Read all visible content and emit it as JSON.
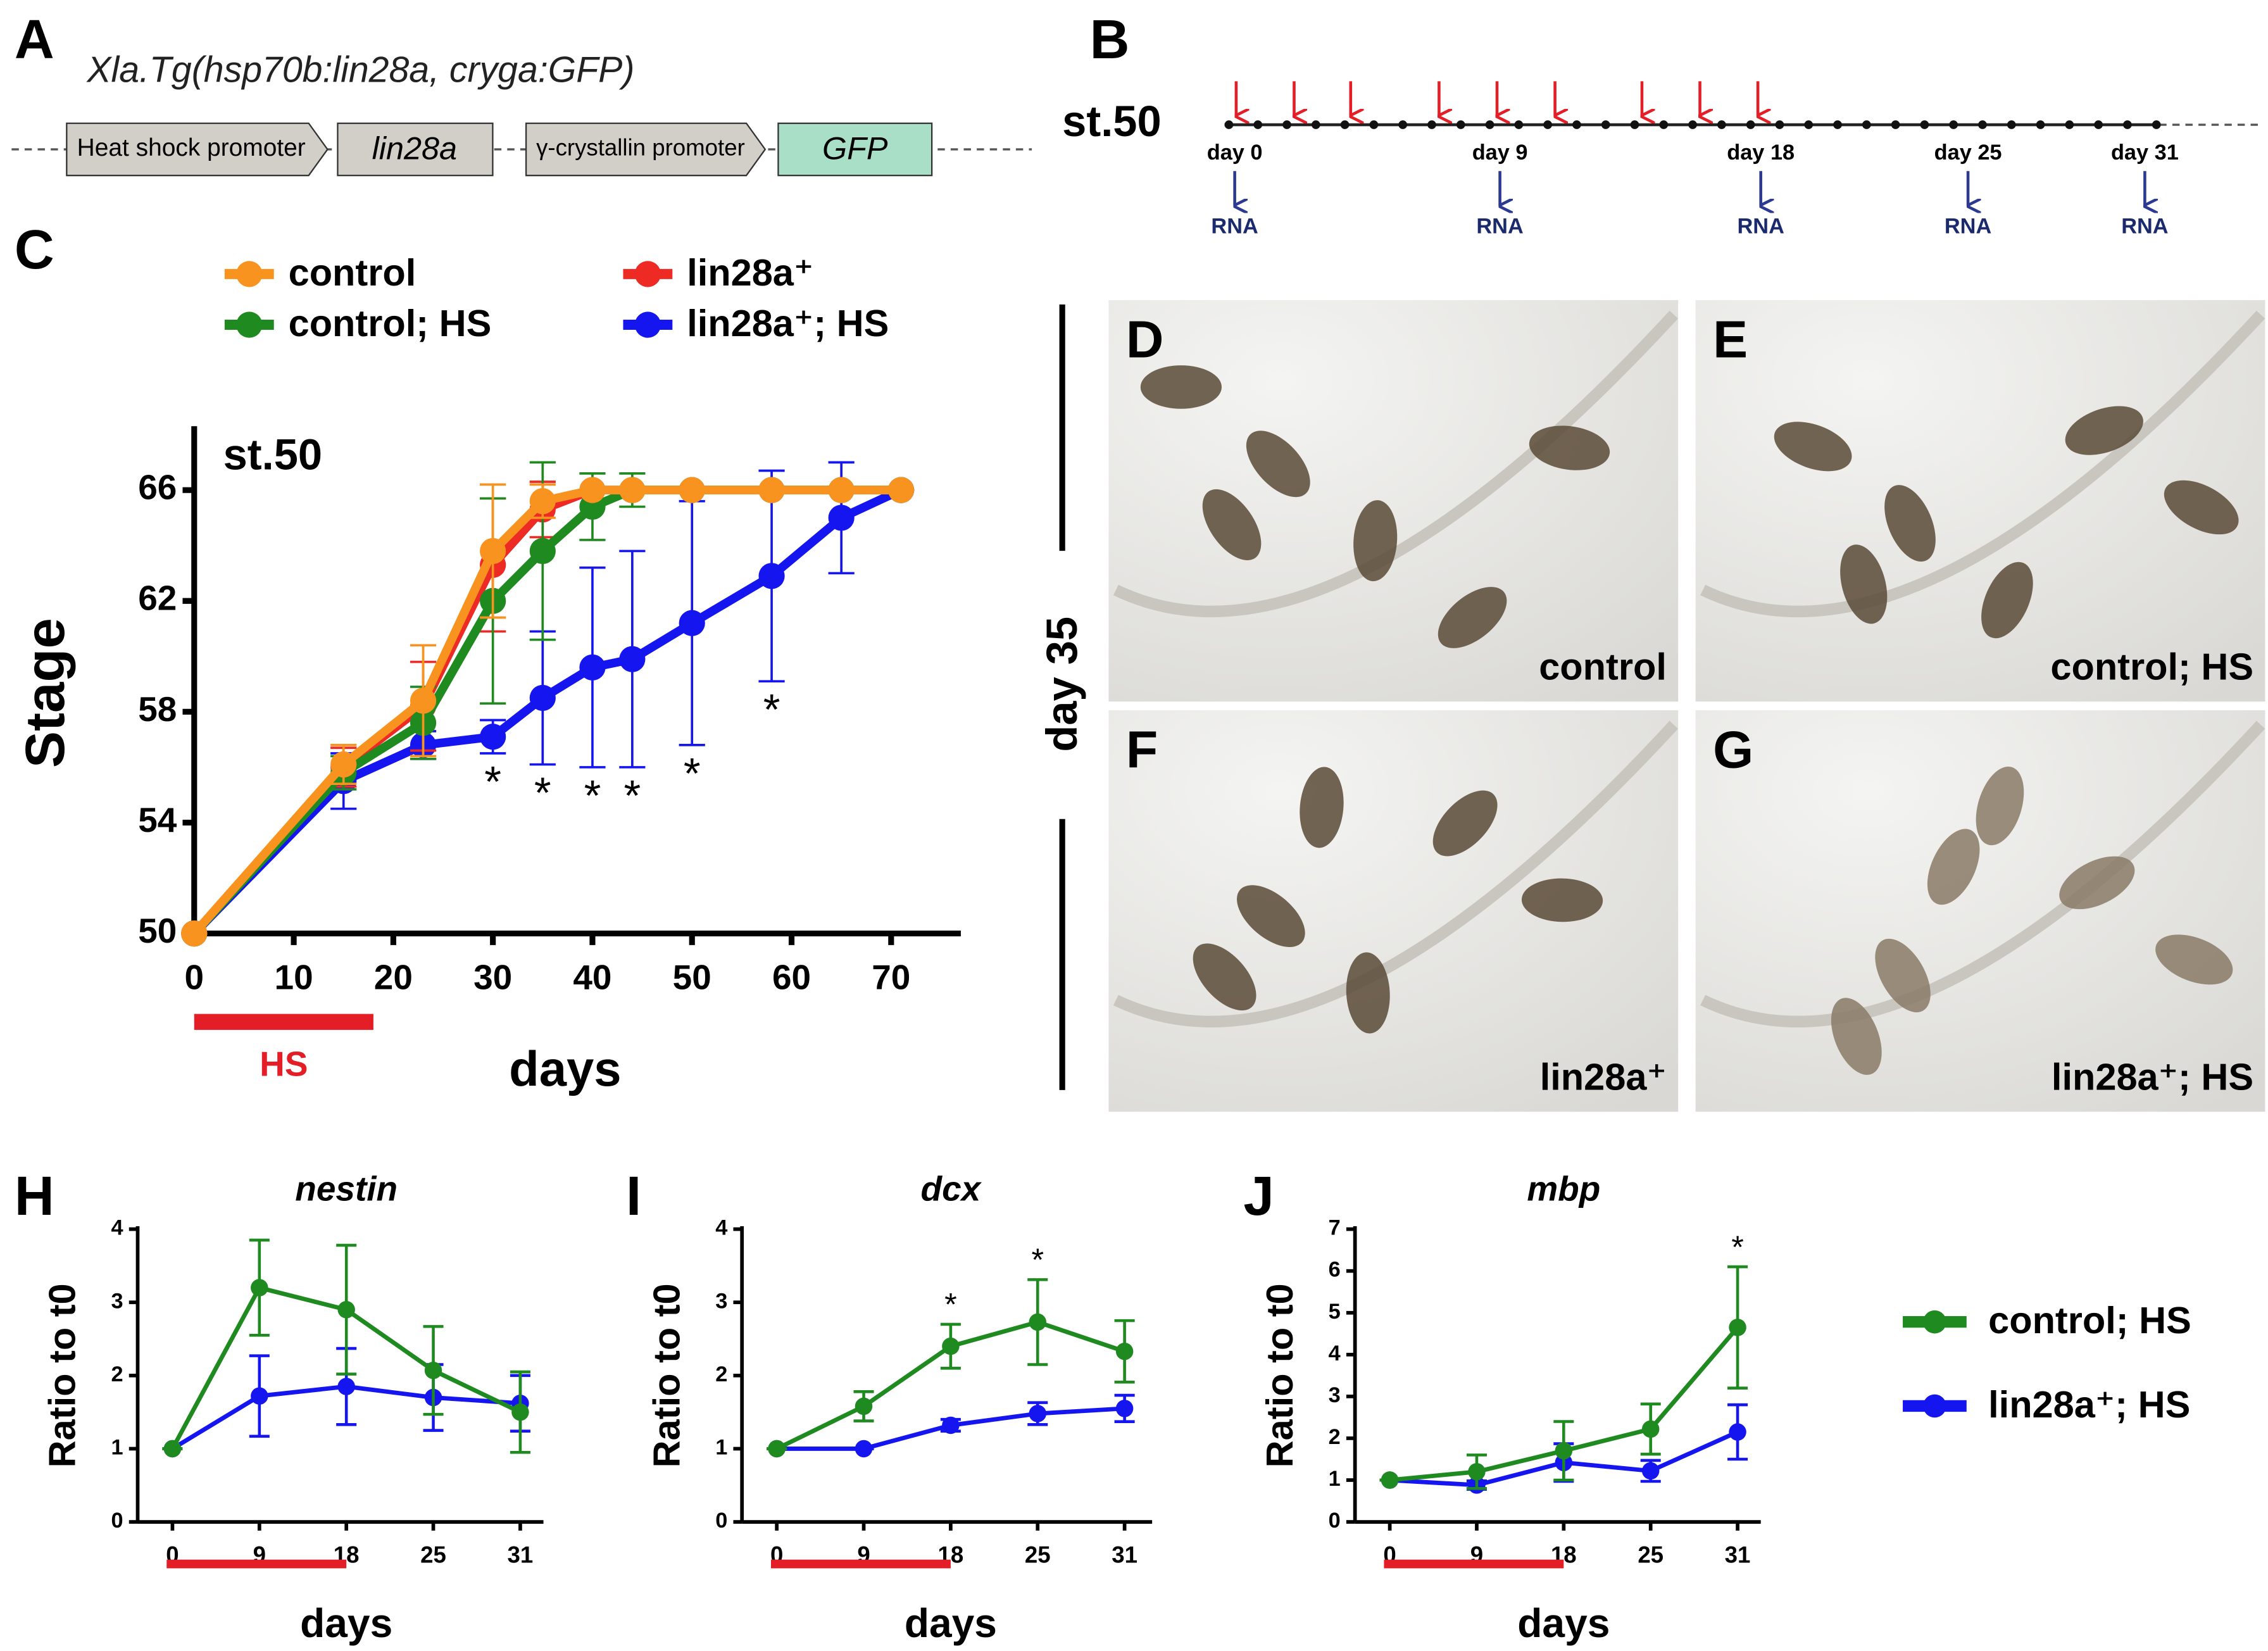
{
  "panel_a": {
    "letter": "A",
    "title": "Xla.Tg(hsp70b:lin28a, cryga:GFP)",
    "elements": [
      "Heat shock promoter",
      "lin28a",
      "γ-crystallin promoter",
      "GFP"
    ]
  },
  "panel_b": {
    "letter": "B",
    "stage": "st.50",
    "sampling": [
      {
        "day": "day 0",
        "label": "RNA"
      },
      {
        "day": "day 9",
        "label": "RNA"
      },
      {
        "day": "day 18",
        "label": "RNA"
      },
      {
        "day": "day 25",
        "label": "RNA"
      },
      {
        "day": "day 31",
        "label": "RNA"
      }
    ]
  },
  "photos": {
    "side_label": "day 35",
    "panels": [
      {
        "letter": "D",
        "label": "control"
      },
      {
        "letter": "E",
        "label": "control; HS"
      },
      {
        "letter": "F",
        "label": "lin28a⁺"
      },
      {
        "letter": "G",
        "label": "lin28a⁺; HS"
      }
    ]
  },
  "chart_data": [
    {
      "type": "line",
      "letter": "C",
      "title": "st.50",
      "x_label": "days",
      "y_label": "Stage",
      "x": [
        0,
        15,
        23,
        30,
        35,
        40,
        44,
        50,
        58,
        65,
        71
      ],
      "series": [
        {
          "name": "control",
          "color": "#f7931e",
          "values": [
            50,
            56.1,
            58.4,
            63.8,
            65.6,
            66,
            66,
            66,
            66,
            66,
            66
          ],
          "errors": [
            0,
            0.7,
            2,
            2.4,
            0.6,
            0,
            0,
            0,
            0,
            0,
            0
          ]
        },
        {
          "name": "control; HS",
          "color": "#1f8a1f",
          "values": [
            50,
            55.8,
            57.6,
            62,
            63.8,
            65.4,
            66,
            66,
            66,
            66,
            66
          ],
          "errors": [
            0,
            0.6,
            1.3,
            3.7,
            3.2,
            1.2,
            0.6,
            0,
            0,
            0,
            0
          ]
        },
        {
          "name": "lin28a⁺",
          "color": "#ee2a24",
          "values": [
            50,
            56,
            58.2,
            63.3,
            65.3,
            66,
            66,
            66,
            66,
            66,
            66
          ],
          "errors": [
            0,
            0.7,
            1.6,
            2.4,
            1,
            0,
            0,
            0,
            0,
            0,
            0
          ]
        },
        {
          "name": "lin28a⁺; HS",
          "color": "#1515f0",
          "values": [
            50,
            55.5,
            56.8,
            57.1,
            58.5,
            59.6,
            59.9,
            61.2,
            62.9,
            65,
            66
          ],
          "errors": [
            0,
            1,
            0.5,
            0.6,
            2.4,
            3.6,
            3.9,
            4.4,
            3.8,
            2,
            0
          ]
        }
      ],
      "xlim": [
        0,
        77
      ],
      "xticks": [
        0,
        10,
        20,
        30,
        40,
        50,
        60,
        70
      ],
      "ylim": [
        50,
        68.2
      ],
      "yticks": [
        50,
        54,
        58,
        62,
        66
      ],
      "hs_period": [
        0,
        18
      ],
      "hs_label": "HS",
      "annotations": [
        {
          "text": "*",
          "x": 30
        },
        {
          "text": "*",
          "x": 35
        },
        {
          "text": "*",
          "x": 40
        },
        {
          "text": "*",
          "x": 44
        },
        {
          "text": "*",
          "x": 50
        },
        {
          "text": "*",
          "x": 58
        }
      ]
    },
    {
      "type": "line",
      "letter": "H",
      "title": "nestin",
      "x_label": "days",
      "y_label": "Ratio to t0",
      "categories": [
        "0",
        "9",
        "18",
        "25",
        "31"
      ],
      "series": [
        {
          "name": "control; HS",
          "color": "#1f8a1f",
          "values": [
            1,
            3.2,
            2.9,
            2.07,
            1.5
          ],
          "errors": [
            0,
            0.65,
            0.88,
            0.6,
            0.55
          ]
        },
        {
          "name": "lin28a⁺; HS",
          "color": "#1515f0",
          "values": [
            1,
            1.72,
            1.85,
            1.7,
            1.62
          ],
          "errors": [
            0,
            0.55,
            0.52,
            0.45,
            0.38
          ]
        }
      ],
      "ylim": [
        0,
        4
      ],
      "yticks": [
        0,
        1,
        2,
        3,
        4
      ],
      "annotations": []
    },
    {
      "type": "line",
      "letter": "I",
      "title": "dcx",
      "x_label": "days",
      "y_label": "Ratio to t0",
      "categories": [
        "0",
        "9",
        "18",
        "25",
        "31"
      ],
      "series": [
        {
          "name": "control; HS",
          "color": "#1f8a1f",
          "values": [
            1,
            1.58,
            2.4,
            2.73,
            2.33
          ],
          "errors": [
            0,
            0.2,
            0.3,
            0.58,
            0.42
          ]
        },
        {
          "name": "lin28a⁺; HS",
          "color": "#1515f0",
          "values": [
            1,
            1,
            1.32,
            1.48,
            1.55
          ],
          "errors": [
            0,
            0,
            0.08,
            0.15,
            0.18
          ]
        }
      ],
      "ylim": [
        0,
        4
      ],
      "yticks": [
        0,
        1,
        2,
        3,
        4
      ],
      "annotations": [
        {
          "text": "*",
          "x": "18"
        },
        {
          "text": "*",
          "x": "25"
        }
      ]
    },
    {
      "type": "line",
      "letter": "J",
      "title": "mbp",
      "x_label": "days",
      "y_label": "Ratio to t0",
      "categories": [
        "0",
        "9",
        "18",
        "25",
        "31"
      ],
      "series": [
        {
          "name": "control; HS",
          "color": "#1f8a1f",
          "values": [
            1,
            1.2,
            1.7,
            2.22,
            4.65
          ],
          "errors": [
            0,
            0.4,
            0.7,
            0.6,
            1.45
          ]
        },
        {
          "name": "lin28a⁺; HS",
          "color": "#1515f0",
          "values": [
            1,
            0.88,
            1.42,
            1.22,
            2.15
          ],
          "errors": [
            0,
            0.1,
            0.45,
            0.25,
            0.65
          ]
        }
      ],
      "ylim": [
        0,
        7
      ],
      "yticks": [
        0,
        1,
        2,
        3,
        4,
        5,
        6,
        7
      ],
      "annotations": [
        {
          "text": "*",
          "x": "31"
        }
      ]
    }
  ]
}
